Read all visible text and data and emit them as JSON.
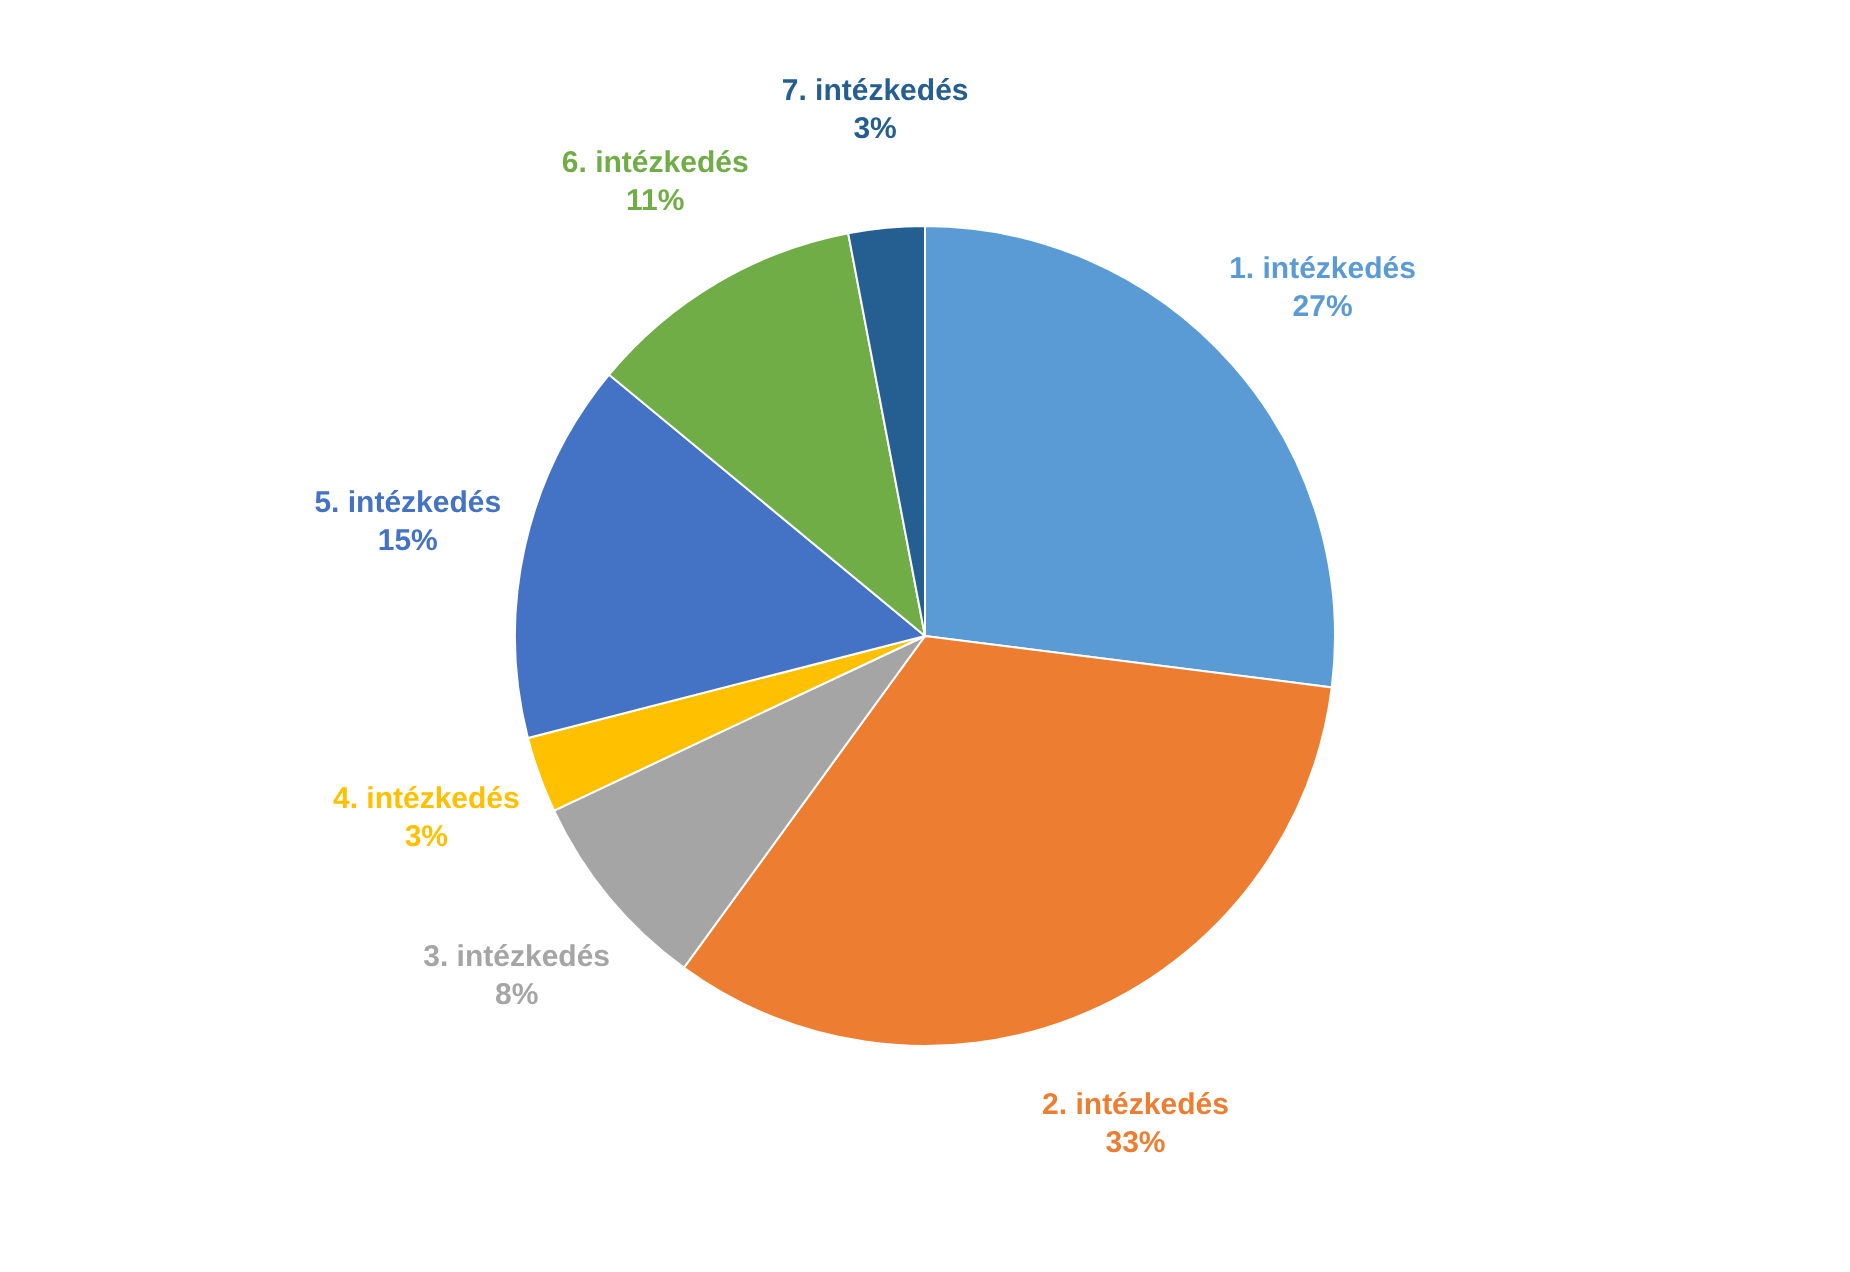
{
  "chart_data": {
    "type": "pie",
    "categories": [
      "1. intézkedés",
      "2. intézkedés",
      "3. intézkedés",
      "4. intézkedés",
      "5. intézkedés",
      "6. intézkedés",
      "7. intézkedés"
    ],
    "values": [
      27,
      33,
      8,
      3,
      15,
      11,
      3
    ],
    "value_labels": [
      "27%",
      "33%",
      "8%",
      "3%",
      "15%",
      "11%",
      "3%"
    ],
    "colors": [
      "#5b9bd5",
      "#ed7d31",
      "#a5a5a5",
      "#ffc000",
      "#4472c4",
      "#70ad47",
      "#255e91"
    ]
  }
}
